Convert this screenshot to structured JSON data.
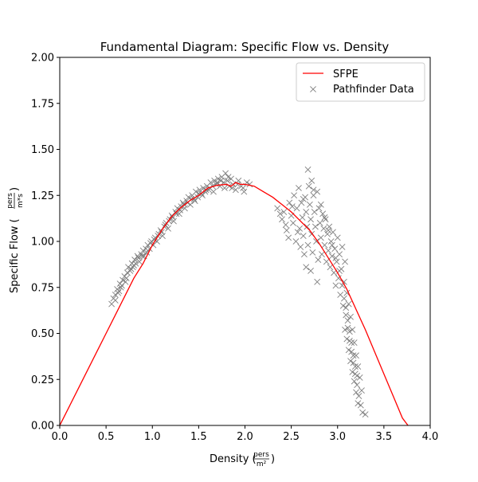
{
  "chart_data": {
    "type": "line+scatter",
    "title": "Fundamental Diagram: Specific Flow vs. Density",
    "xlabel": {
      "prefix": "Density (",
      "frac_num": "pers",
      "frac_den": "m²",
      "suffix": ")"
    },
    "ylabel": {
      "prefix": "Specific Flow (",
      "frac_num": "pers",
      "frac_den": "m*s",
      "suffix": ")"
    },
    "xlim": [
      0.0,
      4.0
    ],
    "ylim": [
      0.0,
      2.0
    ],
    "xticks": [
      0.0,
      0.5,
      1.0,
      1.5,
      2.0,
      2.5,
      3.0,
      3.5,
      4.0
    ],
    "xtick_labels": [
      "0.0",
      "0.5",
      "1.0",
      "1.5",
      "2.0",
      "2.5",
      "3.0",
      "3.5",
      "4.0"
    ],
    "yticks": [
      0.0,
      0.25,
      0.5,
      0.75,
      1.0,
      1.25,
      1.5,
      1.75,
      2.0
    ],
    "ytick_labels": [
      "0.00",
      "0.25",
      "0.50",
      "0.75",
      "1.00",
      "1.25",
      "1.50",
      "1.75",
      "2.00"
    ],
    "grid": false,
    "legend_position": "top-right",
    "series": [
      {
        "name": "SFPE",
        "kind": "line",
        "color": "#ff0000",
        "x": [
          0.0,
          0.1,
          0.2,
          0.3,
          0.4,
          0.5,
          0.6,
          0.7,
          0.8,
          0.9,
          1.0,
          1.1,
          1.2,
          1.3,
          1.4,
          1.5,
          1.6,
          1.7,
          1.8,
          1.85,
          1.9,
          1.95,
          2.0,
          2.1,
          2.2,
          2.3,
          2.4,
          2.5,
          2.6,
          2.7,
          2.8,
          2.9,
          3.0,
          3.1,
          3.2,
          3.3,
          3.4,
          3.5,
          3.6,
          3.7,
          3.76
        ],
        "y": [
          0.0,
          0.1,
          0.2,
          0.3,
          0.4,
          0.5,
          0.6,
          0.7,
          0.8,
          0.88,
          0.98,
          1.06,
          1.13,
          1.18,
          1.22,
          1.25,
          1.29,
          1.305,
          1.31,
          1.3,
          1.32,
          1.31,
          1.31,
          1.3,
          1.27,
          1.24,
          1.2,
          1.16,
          1.11,
          1.06,
          0.99,
          0.91,
          0.83,
          0.74,
          0.63,
          0.52,
          0.4,
          0.28,
          0.16,
          0.04,
          0.0
        ]
      },
      {
        "name": "Pathfinder Data",
        "kind": "scatter",
        "marker": "x",
        "color": "#808080",
        "points": [
          [
            0.56,
            0.66
          ],
          [
            0.58,
            0.69
          ],
          [
            0.6,
            0.71
          ],
          [
            0.62,
            0.74
          ],
          [
            0.63,
            0.72
          ],
          [
            0.65,
            0.77
          ],
          [
            0.66,
            0.75
          ],
          [
            0.68,
            0.79
          ],
          [
            0.7,
            0.81
          ],
          [
            0.71,
            0.78
          ],
          [
            0.73,
            0.83
          ],
          [
            0.74,
            0.86
          ],
          [
            0.76,
            0.84
          ],
          [
            0.78,
            0.88
          ],
          [
            0.79,
            0.86
          ],
          [
            0.81,
            0.9
          ],
          [
            0.82,
            0.88
          ],
          [
            0.84,
            0.92
          ],
          [
            0.86,
            0.89
          ],
          [
            0.88,
            0.93
          ],
          [
            0.9,
            0.95
          ],
          [
            0.91,
            0.92
          ],
          [
            0.93,
            0.96
          ],
          [
            0.95,
            0.98
          ],
          [
            0.97,
            0.96
          ],
          [
            0.99,
            1.0
          ],
          [
            1.01,
            0.98
          ],
          [
            1.03,
            1.02
          ],
          [
            1.05,
            1.0
          ],
          [
            1.07,
            1.04
          ],
          [
            1.09,
            1.06
          ],
          [
            1.11,
            1.03
          ],
          [
            1.13,
            1.08
          ],
          [
            1.15,
            1.1
          ],
          [
            1.17,
            1.07
          ],
          [
            1.19,
            1.12
          ],
          [
            1.21,
            1.14
          ],
          [
            1.23,
            1.11
          ],
          [
            1.25,
            1.16
          ],
          [
            1.27,
            1.18
          ],
          [
            1.29,
            1.15
          ],
          [
            1.31,
            1.19
          ],
          [
            1.33,
            1.21
          ],
          [
            1.35,
            1.18
          ],
          [
            1.37,
            1.22
          ],
          [
            1.39,
            1.24
          ],
          [
            1.41,
            1.2
          ],
          [
            1.43,
            1.25
          ],
          [
            1.45,
            1.23
          ],
          [
            1.47,
            1.27
          ],
          [
            1.49,
            1.24
          ],
          [
            1.51,
            1.28
          ],
          [
            1.53,
            1.26
          ],
          [
            1.55,
            1.29
          ],
          [
            1.57,
            1.27
          ],
          [
            1.59,
            1.3
          ],
          [
            1.61,
            1.28
          ],
          [
            1.63,
            1.32
          ],
          [
            1.65,
            1.3
          ],
          [
            1.67,
            1.33
          ],
          [
            1.69,
            1.31
          ],
          [
            1.71,
            1.34
          ],
          [
            1.73,
            1.3
          ],
          [
            1.75,
            1.35
          ],
          [
            1.77,
            1.32
          ],
          [
            1.79,
            1.37
          ],
          [
            1.81,
            1.33
          ],
          [
            1.83,
            1.3
          ],
          [
            1.85,
            1.34
          ],
          [
            1.87,
            1.31
          ],
          [
            1.9,
            1.28
          ],
          [
            1.93,
            1.33
          ],
          [
            1.96,
            1.3
          ],
          [
            1.99,
            1.27
          ],
          [
            2.02,
            1.32
          ],
          [
            2.05,
            1.31
          ],
          [
            0.6,
            0.68
          ],
          [
            0.64,
            0.73
          ],
          [
            0.67,
            0.76
          ],
          [
            0.72,
            0.8
          ],
          [
            0.77,
            0.85
          ],
          [
            0.8,
            0.87
          ],
          [
            0.85,
            0.91
          ],
          [
            0.89,
            0.92
          ],
          [
            0.94,
            0.94
          ],
          [
            0.98,
            0.99
          ],
          [
            1.02,
            1.01
          ],
          [
            1.06,
            1.03
          ],
          [
            1.1,
            1.05
          ],
          [
            1.14,
            1.09
          ],
          [
            1.18,
            1.11
          ],
          [
            1.22,
            1.13
          ],
          [
            1.26,
            1.15
          ],
          [
            1.3,
            1.17
          ],
          [
            1.34,
            1.2
          ],
          [
            1.38,
            1.21
          ],
          [
            1.42,
            1.23
          ],
          [
            1.46,
            1.22
          ],
          [
            1.5,
            1.26
          ],
          [
            1.54,
            1.25
          ],
          [
            1.58,
            1.28
          ],
          [
            1.62,
            1.29
          ],
          [
            1.66,
            1.27
          ],
          [
            1.7,
            1.32
          ],
          [
            1.74,
            1.33
          ],
          [
            1.78,
            1.29
          ],
          [
            1.82,
            1.35
          ],
          [
            1.86,
            1.29
          ],
          [
            1.92,
            1.31
          ],
          [
            1.98,
            1.29
          ],
          [
            2.35,
            1.18
          ],
          [
            2.4,
            1.12
          ],
          [
            2.42,
            1.16
          ],
          [
            2.45,
            1.06
          ],
          [
            2.47,
            1.02
          ],
          [
            2.48,
            1.21
          ],
          [
            2.5,
            1.14
          ],
          [
            2.52,
            1.1
          ],
          [
            2.53,
            1.25
          ],
          [
            2.55,
            1.0
          ],
          [
            2.56,
            1.18
          ],
          [
            2.58,
            1.29
          ],
          [
            2.59,
            1.07
          ],
          [
            2.6,
            0.97
          ],
          [
            2.61,
            1.21
          ],
          [
            2.62,
            1.13
          ],
          [
            2.63,
            1.03
          ],
          [
            2.64,
            0.93
          ],
          [
            2.65,
            1.24
          ],
          [
            2.66,
            1.16
          ],
          [
            2.67,
            1.08
          ],
          [
            2.68,
            1.39
          ],
          [
            2.68,
            0.98
          ],
          [
            2.69,
            1.3
          ],
          [
            2.7,
            1.2
          ],
          [
            2.71,
            1.12
          ],
          [
            2.72,
            1.33
          ],
          [
            2.72,
            1.04
          ],
          [
            2.73,
            0.94
          ],
          [
            2.74,
            1.25
          ],
          [
            2.75,
            1.16
          ],
          [
            2.76,
            1.08
          ],
          [
            2.77,
            1.0
          ],
          [
            2.78,
            1.27
          ],
          [
            2.79,
            0.9
          ],
          [
            2.8,
            1.18
          ],
          [
            2.81,
            1.1
          ],
          [
            2.82,
            1.02
          ],
          [
            2.83,
            0.93
          ],
          [
            2.84,
            1.15
          ],
          [
            2.85,
            1.07
          ],
          [
            2.86,
            0.98
          ],
          [
            2.87,
            1.12
          ],
          [
            2.88,
            0.89
          ],
          [
            2.89,
            1.04
          ],
          [
            2.9,
            0.95
          ],
          [
            2.91,
            1.08
          ],
          [
            2.92,
            0.86
          ],
          [
            2.93,
            1.0
          ],
          [
            2.94,
            0.92
          ],
          [
            2.95,
            1.05
          ],
          [
            2.96,
            0.83
          ],
          [
            2.97,
            0.96
          ],
          [
            2.98,
            0.76
          ],
          [
            2.99,
            0.89
          ],
          [
            3.0,
            1.02
          ],
          [
            3.01,
            0.8
          ],
          [
            3.02,
            0.93
          ],
          [
            3.03,
            0.71
          ],
          [
            3.04,
            0.85
          ],
          [
            3.05,
            0.97
          ],
          [
            3.06,
            0.65
          ],
          [
            3.07,
            0.78
          ],
          [
            3.08,
            0.89
          ],
          [
            3.09,
            0.6
          ],
          [
            3.1,
            0.72
          ],
          [
            3.11,
            0.53
          ],
          [
            3.12,
            0.66
          ],
          [
            3.13,
            0.46
          ],
          [
            3.14,
            0.59
          ],
          [
            3.15,
            0.4
          ],
          [
            3.16,
            0.52
          ],
          [
            3.17,
            0.34
          ],
          [
            3.18,
            0.45
          ],
          [
            3.19,
            0.28
          ],
          [
            3.2,
            0.38
          ],
          [
            3.21,
            0.22
          ],
          [
            3.22,
            0.32
          ],
          [
            3.23,
            0.16
          ],
          [
            3.24,
            0.26
          ],
          [
            3.25,
            0.11
          ],
          [
            3.26,
            0.19
          ],
          [
            3.27,
            0.07
          ],
          [
            3.3,
            0.06
          ],
          [
            2.38,
            1.15
          ],
          [
            2.44,
            1.09
          ],
          [
            2.51,
            1.19
          ],
          [
            2.57,
            1.05
          ],
          [
            2.63,
            1.23
          ],
          [
            2.66,
            0.86
          ],
          [
            2.71,
            0.84
          ],
          [
            2.74,
            1.28
          ],
          [
            2.78,
            0.78
          ],
          [
            2.82,
            1.2
          ],
          [
            2.86,
            1.13
          ],
          [
            2.9,
            1.06
          ],
          [
            2.94,
            0.98
          ],
          [
            2.98,
            0.91
          ],
          [
            3.02,
            0.84
          ],
          [
            3.05,
            0.76
          ],
          [
            3.07,
            0.69
          ],
          [
            3.09,
            0.64
          ],
          [
            3.11,
            0.57
          ],
          [
            3.13,
            0.51
          ],
          [
            3.15,
            0.45
          ],
          [
            3.17,
            0.38
          ],
          [
            3.19,
            0.32
          ],
          [
            3.21,
            0.27
          ],
          [
            3.12,
            0.41
          ],
          [
            3.14,
            0.35
          ],
          [
            3.16,
            0.29
          ],
          [
            3.18,
            0.24
          ],
          [
            3.08,
            0.52
          ],
          [
            3.1,
            0.47
          ],
          [
            3.2,
            0.18
          ],
          [
            3.22,
            0.12
          ]
        ]
      }
    ]
  }
}
